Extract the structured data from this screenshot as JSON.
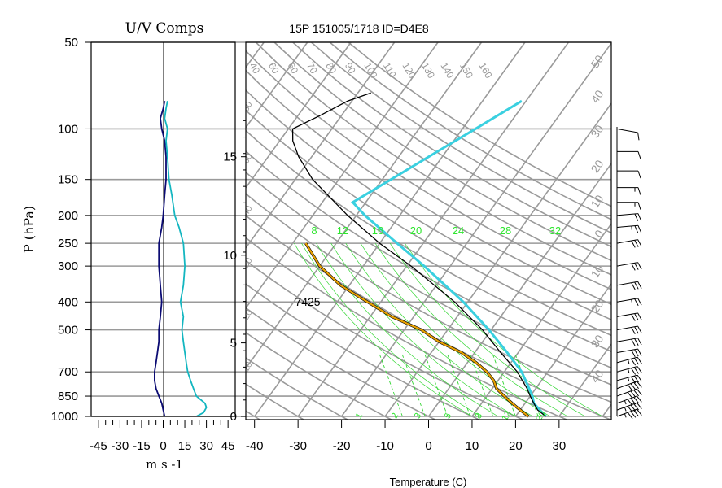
{
  "header": {
    "title": "15P 151005/1718 ID=D4E8"
  },
  "chart_data": [
    {
      "type": "line",
      "title": "U/V Comps",
      "xlabel": "m s -1",
      "ylabel": "P (hPa)",
      "x_ticks": [
        "-45",
        "-30",
        "-15",
        "0",
        "15",
        "30",
        "45"
      ],
      "x_range": [
        -50,
        50
      ],
      "y_ticks": [
        "50",
        "100",
        "150",
        "200",
        "250",
        "300",
        "400",
        "500",
        "700",
        "850",
        "1000"
      ],
      "y_range_hpa": [
        1000,
        50
      ],
      "y_scale": "log",
      "grid": true,
      "series": [
        {
          "color": "#0b0b73",
          "points": [
            {
              "p": 1000,
              "v": 1
            },
            {
              "p": 950,
              "v": 0
            },
            {
              "p": 900,
              "v": -1
            },
            {
              "p": 850,
              "v": -3
            },
            {
              "p": 800,
              "v": -5
            },
            {
              "p": 750,
              "v": -6
            },
            {
              "p": 700,
              "v": -6
            },
            {
              "p": 650,
              "v": -5
            },
            {
              "p": 600,
              "v": -4
            },
            {
              "p": 550,
              "v": -3
            },
            {
              "p": 500,
              "v": -3
            },
            {
              "p": 450,
              "v": -2
            },
            {
              "p": 400,
              "v": -1
            },
            {
              "p": 350,
              "v": -2
            },
            {
              "p": 300,
              "v": -3
            },
            {
              "p": 250,
              "v": -3
            },
            {
              "p": 220,
              "v": -1
            },
            {
              "p": 200,
              "v": 0
            },
            {
              "p": 170,
              "v": 1
            },
            {
              "p": 150,
              "v": 2
            },
            {
              "p": 125,
              "v": 2
            },
            {
              "p": 110,
              "v": 1
            },
            {
              "p": 100,
              "v": -1
            },
            {
              "p": 92,
              "v": -2
            },
            {
              "p": 85,
              "v": 0
            },
            {
              "p": 80,
              "v": 1
            }
          ]
        },
        {
          "color": "#13b6c0",
          "points": [
            {
              "p": 1000,
              "v": 23
            },
            {
              "p": 970,
              "v": 28
            },
            {
              "p": 930,
              "v": 30
            },
            {
              "p": 900,
              "v": 29
            },
            {
              "p": 850,
              "v": 23
            },
            {
              "p": 800,
              "v": 21
            },
            {
              "p": 750,
              "v": 19
            },
            {
              "p": 700,
              "v": 17
            },
            {
              "p": 650,
              "v": 16
            },
            {
              "p": 600,
              "v": 15
            },
            {
              "p": 550,
              "v": 14
            },
            {
              "p": 500,
              "v": 13
            },
            {
              "p": 450,
              "v": 14
            },
            {
              "p": 400,
              "v": 12
            },
            {
              "p": 350,
              "v": 14
            },
            {
              "p": 300,
              "v": 15
            },
            {
              "p": 250,
              "v": 14
            },
            {
              "p": 220,
              "v": 11
            },
            {
              "p": 200,
              "v": 8
            },
            {
              "p": 170,
              "v": 6
            },
            {
              "p": 150,
              "v": 4
            },
            {
              "p": 125,
              "v": 3
            },
            {
              "p": 110,
              "v": 2
            },
            {
              "p": 100,
              "v": 3
            },
            {
              "p": 92,
              "v": 1
            },
            {
              "p": 85,
              "v": 2
            },
            {
              "p": 80,
              "v": 3
            }
          ]
        }
      ]
    },
    {
      "type": "line",
      "subtype": "skew-t",
      "xlabel": "Temperature (C)",
      "x_ticks": [
        "-40",
        "-30",
        "-20",
        "-10",
        "0",
        "10",
        "20",
        "30"
      ],
      "t_range_at_1000hpa": [
        -42,
        42
      ],
      "p_range_hpa": [
        1000,
        50
      ],
      "height_ticks_km": [
        "0",
        "5",
        "10",
        "15"
      ],
      "annotation": "7425",
      "isotherm_labels_top": [
        "40",
        "60",
        "60",
        "70",
        "80",
        "90",
        "100",
        "110",
        "120",
        "130",
        "140",
        "150",
        "160"
      ],
      "mixing_ratio_labels": [
        "8",
        "12",
        "16",
        "20",
        "24",
        "28",
        "32"
      ],
      "lower_mixing_labels": [
        "1",
        "2",
        "3",
        "5",
        "8",
        "12",
        "20"
      ],
      "right_edge_labels": [
        "50",
        "40",
        "30",
        "20",
        "10",
        "0",
        "10",
        "20",
        "30",
        "40"
      ],
      "left_edge_labels": [
        "80",
        "60",
        "40",
        "30",
        "20",
        "10"
      ],
      "series": [
        {
          "role": "temperature",
          "color": "#000000",
          "points": [
            {
              "p": 1000,
              "t": 27
            },
            {
              "p": 950,
              "t": 24
            },
            {
              "p": 900,
              "t": 22
            },
            {
              "p": 850,
              "t": 20
            },
            {
              "p": 800,
              "t": 18
            },
            {
              "p": 700,
              "t": 13
            },
            {
              "p": 600,
              "t": 6
            },
            {
              "p": 500,
              "t": -2
            },
            {
              "p": 400,
              "t": -13
            },
            {
              "p": 300,
              "t": -29
            },
            {
              "p": 250,
              "t": -40
            },
            {
              "p": 200,
              "t": -52
            },
            {
              "p": 150,
              "t": -66
            },
            {
              "p": 125,
              "t": -73
            },
            {
              "p": 110,
              "t": -77
            },
            {
              "p": 100,
              "t": -79
            },
            {
              "p": 90,
              "t": -75
            },
            {
              "p": 80,
              "t": -71
            },
            {
              "p": 75,
              "t": -67
            }
          ]
        },
        {
          "role": "dewpoint",
          "color": "#e8a000",
          "points": [
            {
              "p": 1000,
              "t": 23
            },
            {
              "p": 950,
              "t": 20
            },
            {
              "p": 900,
              "t": 17
            },
            {
              "p": 850,
              "t": 14
            },
            {
              "p": 800,
              "t": 11
            },
            {
              "p": 750,
              "t": 9
            },
            {
              "p": 700,
              "t": 6
            },
            {
              "p": 650,
              "t": 2
            },
            {
              "p": 600,
              "t": -3
            },
            {
              "p": 550,
              "t": -10
            },
            {
              "p": 500,
              "t": -16
            },
            {
              "p": 450,
              "t": -25
            },
            {
              "p": 400,
              "t": -33
            },
            {
              "p": 350,
              "t": -42
            },
            {
              "p": 300,
              "t": -50
            },
            {
              "p": 250,
              "t": -57
            }
          ]
        },
        {
          "role": "parcel",
          "color": "#3ad0e0",
          "points": [
            {
              "p": 1000,
              "t": 27
            },
            {
              "p": 950,
              "t": 24.5
            },
            {
              "p": 900,
              "t": 22
            },
            {
              "p": 850,
              "t": 20.5
            },
            {
              "p": 800,
              "t": 18.5
            },
            {
              "p": 700,
              "t": 14
            },
            {
              "p": 600,
              "t": 7.5
            },
            {
              "p": 500,
              "t": -0.5
            },
            {
              "p": 400,
              "t": -11
            },
            {
              "p": 300,
              "t": -26
            },
            {
              "p": 250,
              "t": -36
            },
            {
              "p": 200,
              "t": -48
            },
            {
              "p": 180,
              "t": -53
            },
            {
              "p": 150,
              "t": -48
            },
            {
              "p": 120,
              "t": -42
            },
            {
              "p": 100,
              "t": -37
            },
            {
              "p": 80,
              "t": -31
            }
          ]
        }
      ],
      "wind_barbs": [
        {
          "p": 1000,
          "dir": 110,
          "kt": 45
        },
        {
          "p": 950,
          "dir": 110,
          "kt": 45
        },
        {
          "p": 900,
          "dir": 110,
          "kt": 45
        },
        {
          "p": 850,
          "dir": 110,
          "kt": 40
        },
        {
          "p": 800,
          "dir": 110,
          "kt": 40
        },
        {
          "p": 750,
          "dir": 105,
          "kt": 35
        },
        {
          "p": 700,
          "dir": 105,
          "kt": 35
        },
        {
          "p": 650,
          "dir": 105,
          "kt": 35
        },
        {
          "p": 600,
          "dir": 100,
          "kt": 30
        },
        {
          "p": 550,
          "dir": 100,
          "kt": 30
        },
        {
          "p": 500,
          "dir": 100,
          "kt": 30
        },
        {
          "p": 450,
          "dir": 100,
          "kt": 30
        },
        {
          "p": 400,
          "dir": 100,
          "kt": 25
        },
        {
          "p": 350,
          "dir": 100,
          "kt": 30
        },
        {
          "p": 300,
          "dir": 100,
          "kt": 30
        },
        {
          "p": 250,
          "dir": 100,
          "kt": 30
        },
        {
          "p": 220,
          "dir": 95,
          "kt": 25
        },
        {
          "p": 200,
          "dir": 95,
          "kt": 20
        },
        {
          "p": 180,
          "dir": 90,
          "kt": 15
        },
        {
          "p": 160,
          "dir": 90,
          "kt": 15
        },
        {
          "p": 140,
          "dir": 90,
          "kt": 10
        },
        {
          "p": 120,
          "dir": 90,
          "kt": 10
        },
        {
          "p": 100,
          "dir": 80,
          "kt": 10
        }
      ]
    }
  ]
}
